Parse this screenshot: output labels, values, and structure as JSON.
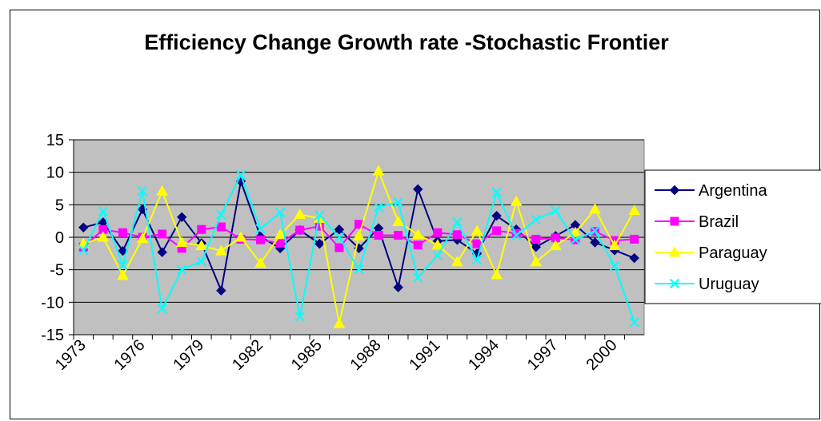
{
  "chart_data": {
    "type": "line",
    "title": "Efficiency Change Growth rate -Stochastic Frontier",
    "categories": [
      "1973",
      null,
      null,
      "1976",
      null,
      null,
      "1979",
      null,
      null,
      "1982",
      null,
      null,
      "1985",
      null,
      null,
      "1988",
      null,
      null,
      "1991",
      null,
      null,
      "1994",
      null,
      null,
      "1997",
      null,
      null,
      "2000",
      null
    ],
    "ylim": [
      -15,
      15
    ],
    "yticks": [
      -15,
      -10,
      -5,
      0,
      5,
      10,
      15
    ],
    "grid": true,
    "legend": "right",
    "series": [
      {
        "name": "Argentina",
        "color": "#000080",
        "marker": "diamond",
        "values": [
          1.5,
          2.3,
          -2.1,
          4.3,
          -2.3,
          3.1,
          -0.9,
          -8.2,
          8.6,
          0.1,
          -1.7,
          1.1,
          -1.0,
          1.2,
          -1.7,
          1.4,
          -7.7,
          7.4,
          -0.6,
          -0.4,
          -2.5,
          3.3,
          1.2,
          -1.5,
          0.2,
          1.9,
          -0.8,
          -2.0,
          -3.2
        ]
      },
      {
        "name": "Brazil",
        "color": "#FF00FF",
        "marker": "square",
        "values": [
          -1.5,
          1.2,
          0.7,
          0.0,
          0.5,
          -1.7,
          1.2,
          1.6,
          -0.3,
          -0.4,
          -0.9,
          1.1,
          1.7,
          -1.6,
          2.0,
          0.3,
          0.3,
          -1.2,
          0.7,
          0.4,
          -1.0,
          1.0,
          0.6,
          -0.3,
          -0.1,
          -0.4,
          0.9,
          -0.5,
          -0.3
        ]
      },
      {
        "name": "Paraguay",
        "color": "#FFFF00",
        "marker": "triangle",
        "values": [
          -1.0,
          0.0,
          -5.9,
          -0.2,
          7.1,
          -0.8,
          -1.3,
          -2.1,
          0.0,
          -4.0,
          0.4,
          3.5,
          2.9,
          -13.3,
          0.2,
          10.2,
          2.4,
          0.4,
          -1.2,
          -3.8,
          1.0,
          -5.8,
          5.5,
          -3.8,
          -1.3,
          0.7,
          4.3,
          -1.3,
          4.1
        ]
      },
      {
        "name": "Uruguay",
        "color": "#00FFFF",
        "marker": "x",
        "values": [
          -2.0,
          4.0,
          -4.3,
          7.1,
          -11.0,
          -5.0,
          -3.7,
          3.5,
          9.6,
          1.3,
          3.8,
          -12.2,
          3.4,
          0.0,
          -4.9,
          4.6,
          5.4,
          -6.2,
          -2.8,
          2.3,
          -3.5,
          6.9,
          0.3,
          2.7,
          4.1,
          -0.4,
          1.0,
          -4.4,
          -13.1
        ]
      }
    ]
  }
}
